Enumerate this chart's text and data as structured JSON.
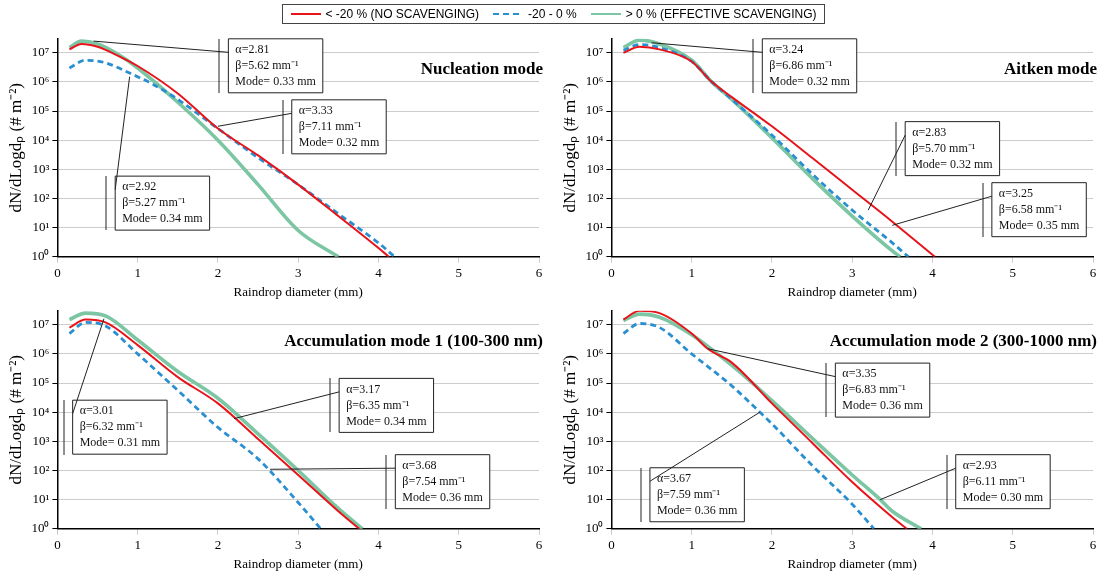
{
  "chart_data": [
    {
      "type": "line",
      "title": "Nucleation mode",
      "xlabel": "Raindrop diameter (mm)",
      "ylabel": "dN/dLogdₚ (# m⁻²)",
      "log": "y",
      "grid": "y",
      "legend": "top",
      "marker": "none",
      "xlim": [
        0,
        6
      ],
      "xticks": [
        0,
        1,
        2,
        3,
        4,
        5,
        6
      ],
      "ylim": [
        1,
        30000000
      ],
      "yticks": [
        {
          "value": 1,
          "label": "10⁰"
        },
        {
          "value": 10,
          "label": "10¹"
        },
        {
          "value": 100,
          "label": "10²"
        },
        {
          "value": 1000,
          "label": "10³"
        },
        {
          "value": 10000,
          "label": "10⁴"
        },
        {
          "value": 100000,
          "label": "10⁵"
        },
        {
          "value": 1000000,
          "label": "10⁶"
        },
        {
          "value": 10000000,
          "label": "10⁷"
        }
      ],
      "series": [
        {
          "name": "< -20 % (NO SCAVENGING)",
          "color": "#e8141a",
          "line_style": "solid",
          "x": [
            0.15,
            0.3,
            0.5,
            0.75,
            1,
            1.5,
            2,
            2.5,
            3,
            3.5,
            4,
            4.13
          ],
          "values": [
            13000000,
            20000000,
            16000000,
            8000000,
            3500000,
            400000,
            25000,
            3000,
            300,
            25,
            2,
            1
          ]
        },
        {
          "name": "-20 - 0 %",
          "color": "#2a8fd0",
          "line_style": "dashed",
          "x": [
            0.15,
            0.35,
            0.6,
            0.9,
            1.2,
            1.5,
            2,
            2.5,
            3,
            3.5,
            4,
            4.2
          ],
          "values": [
            3000000,
            5500000,
            4500000,
            2000000,
            800000,
            250000,
            25000,
            2500,
            300,
            30,
            3,
            1
          ]
        },
        {
          "name": "> 0 % (EFFECTIVE SCAVENGING)",
          "color": "#7cc6a4",
          "line_style": "solid",
          "x": [
            0.15,
            0.3,
            0.5,
            0.75,
            1,
            1.5,
            2,
            2.5,
            3,
            3.5
          ],
          "values": [
            15000000,
            25000000,
            20000000,
            9000000,
            3000000,
            200000,
            10000,
            300,
            8,
            1
          ]
        }
      ],
      "annotations": [
        {
          "text": "α=2.81\nβ=5.62 mm⁻¹\nMode= 0.33 mm",
          "x": 0.45,
          "y": 25000000
        },
        {
          "text": "α=3.33\nβ=7.11 mm⁻¹\nMode= 0.32 mm",
          "x": 2.0,
          "y": 30000
        },
        {
          "text": "α=2.92\nβ=5.27 mm⁻¹\nMode= 0.34 mm",
          "x": 0.9,
          "y": 1500000
        }
      ]
    },
    {
      "type": "line",
      "title": "Aitken mode",
      "xlabel": "Raindrop diameter (mm)",
      "ylabel": "dN/dLogdₚ (# m⁻²)",
      "log": "y",
      "grid": "y",
      "marker": "none",
      "xlim": [
        0,
        6
      ],
      "xticks": [
        0,
        1,
        2,
        3,
        4,
        5,
        6
      ],
      "ylim": [
        1,
        30000000
      ],
      "yticks": [
        {
          "value": 1,
          "label": "10⁰"
        },
        {
          "value": 10,
          "label": "10¹"
        },
        {
          "value": 100,
          "label": "10²"
        },
        {
          "value": 1000,
          "label": "10³"
        },
        {
          "value": 10000,
          "label": "10⁴"
        },
        {
          "value": 100000,
          "label": "10⁵"
        },
        {
          "value": 1000000,
          "label": "10⁶"
        },
        {
          "value": 10000000,
          "label": "10⁷"
        }
      ],
      "series": [
        {
          "color": "#e8141a",
          "line_style": "solid",
          "x": [
            0.15,
            0.35,
            0.6,
            1,
            1.25,
            1.5,
            2,
            2.5,
            3,
            3.5,
            4.03
          ],
          "values": [
            10000000,
            16000000,
            13000000,
            5000000,
            1000000,
            300000,
            30000,
            2500,
            200,
            16,
            1
          ]
        },
        {
          "color": "#2a8fd0",
          "line_style": "dashed",
          "x": [
            0.15,
            0.35,
            0.6,
            1,
            1.25,
            1.5,
            2,
            2.5,
            3,
            3.5,
            3.7
          ],
          "values": [
            12000000,
            19000000,
            15000000,
            5000000,
            1000000,
            250000,
            15000,
            700,
            40,
            3,
            1
          ]
        },
        {
          "color": "#7cc6a4",
          "line_style": "solid",
          "x": [
            0.15,
            0.35,
            0.6,
            1,
            1.25,
            1.5,
            2,
            2.5,
            3,
            3.5,
            3.6
          ],
          "values": [
            15000000,
            27000000,
            20000000,
            5500000,
            1000000,
            250000,
            12000,
            500,
            25,
            1.6,
            1
          ]
        }
      ],
      "annotations": [
        {
          "text": "α=3.24\nβ=6.86 mm⁻¹\nMode= 0.32 mm",
          "x": 0.5,
          "y": 22000000
        },
        {
          "text": "α=2.83\nβ=5.70 mm⁻¹\nMode= 0.32 mm",
          "x": 3.2,
          "y": 40
        },
        {
          "text": "α=3.25\nβ=6.58 mm⁻¹\nMode= 0.35 mm",
          "x": 3.5,
          "y": 12
        }
      ]
    },
    {
      "type": "line",
      "title": "Accumulation mode 1 (100-300 nm)",
      "xlabel": "Raindrop diameter (mm)",
      "ylabel": "dN/dLogdₚ (# m⁻²)",
      "log": "y",
      "grid": "y",
      "marker": "none",
      "xlim": [
        0,
        6
      ],
      "xticks": [
        0,
        1,
        2,
        3,
        4,
        5,
        6
      ],
      "ylim": [
        1,
        30000000
      ],
      "yticks": [
        {
          "value": 1,
          "label": "10⁰"
        },
        {
          "value": 10,
          "label": "10¹"
        },
        {
          "value": 100,
          "label": "10²"
        },
        {
          "value": 1000,
          "label": "10³"
        },
        {
          "value": 10000,
          "label": "10⁴"
        },
        {
          "value": 100000,
          "label": "10⁵"
        },
        {
          "value": 1000000,
          "label": "10⁶"
        },
        {
          "value": 10000000,
          "label": "10⁷"
        }
      ],
      "series": [
        {
          "color": "#e8141a",
          "line_style": "solid",
          "x": [
            0.15,
            0.35,
            0.6,
            1,
            1.5,
            2,
            2.5,
            3,
            3.5,
            3.76
          ],
          "values": [
            8000000,
            15000000,
            12000000,
            2000000,
            160000,
            20000,
            1200,
            70,
            4,
            1
          ]
        },
        {
          "color": "#2a8fd0",
          "line_style": "dashed",
          "x": [
            0.15,
            0.35,
            0.6,
            1,
            1.5,
            2,
            2.5,
            3,
            3.28
          ],
          "values": [
            5000000,
            12000000,
            9000000,
            1000000,
            56000,
            3000,
            250,
            8,
            1
          ]
        },
        {
          "color": "#7cc6a4",
          "line_style": "solid",
          "x": [
            0.15,
            0.35,
            0.6,
            1,
            1.5,
            2,
            2.5,
            3,
            3.5,
            3.8
          ],
          "values": [
            15000000,
            25000000,
            20000000,
            3000000,
            250000,
            30000,
            1800,
            100,
            5,
            1
          ]
        }
      ],
      "annotations": [
        {
          "text": "α=3.01\nβ=6.32 mm⁻¹\nMode= 0.31 mm",
          "x": 0.58,
          "y": 16000000
        },
        {
          "text": "α=3.17\nβ=6.35 mm⁻¹\nMode= 0.34 mm",
          "x": 2.2,
          "y": 6000
        },
        {
          "text": "α=3.68\nβ=7.54 mm⁻¹\nMode= 0.36 mm",
          "x": 2.65,
          "y": 110
        }
      ]
    },
    {
      "type": "line",
      "title": "Accumulation mode 2 (300-1000 nm)",
      "xlabel": "Raindrop diameter (mm)",
      "ylabel": "dN/dLogdₚ (# m⁻²)",
      "log": "y",
      "grid": "y",
      "marker": "none",
      "xlim": [
        0,
        6
      ],
      "xticks": [
        0,
        1,
        2,
        3,
        4,
        5,
        6
      ],
      "ylim": [
        1,
        30000000
      ],
      "yticks": [
        {
          "value": 1,
          "label": "10⁰"
        },
        {
          "value": 10,
          "label": "10¹"
        },
        {
          "value": 100,
          "label": "10²"
        },
        {
          "value": 1000,
          "label": "10³"
        },
        {
          "value": 10000,
          "label": "10⁴"
        },
        {
          "value": 100000,
          "label": "10⁵"
        },
        {
          "value": 1000000,
          "label": "10⁶"
        },
        {
          "value": 10000000,
          "label": "10⁷"
        }
      ],
      "series": [
        {
          "color": "#e8141a",
          "line_style": "solid",
          "x": [
            0.15,
            0.35,
            0.6,
            1,
            1.2,
            1.5,
            2,
            2.5,
            3,
            3.5,
            3.68
          ],
          "values": [
            15000000,
            30000000,
            25000000,
            5000000,
            1500000,
            500000,
            20000,
            900,
            40,
            2.5,
            1
          ]
        },
        {
          "color": "#2a8fd0",
          "line_style": "dashed",
          "x": [
            0.15,
            0.35,
            0.6,
            1,
            1.5,
            1.85,
            2,
            2.5,
            3,
            3.27
          ],
          "values": [
            5000000,
            11000000,
            8000000,
            1000000,
            80000,
            10000,
            4000,
            150,
            7,
            1
          ]
        },
        {
          "color": "#7cc6a4",
          "line_style": "solid",
          "x": [
            0.15,
            0.35,
            0.6,
            1,
            1.5,
            2,
            2.5,
            3,
            3.35,
            3.5,
            3.86
          ],
          "values": [
            14000000,
            23000000,
            18000000,
            4500000,
            400000,
            25000,
            1300,
            70,
            10,
            4,
            1
          ]
        }
      ],
      "annotations": [
        {
          "text": "α=3.35\nβ=6.83 mm⁻¹\nMode= 0.36 mm",
          "x": 1.2,
          "y": 1500000
        },
        {
          "text": "α=3.67\nβ=7.59 mm⁻¹\nMode= 0.36 mm",
          "x": 1.85,
          "y": 10000
        },
        {
          "text": "α=2.93\nβ=6.11 mm⁻¹\nMode= 0.30 mm",
          "x": 3.35,
          "y": 10
        }
      ]
    }
  ]
}
